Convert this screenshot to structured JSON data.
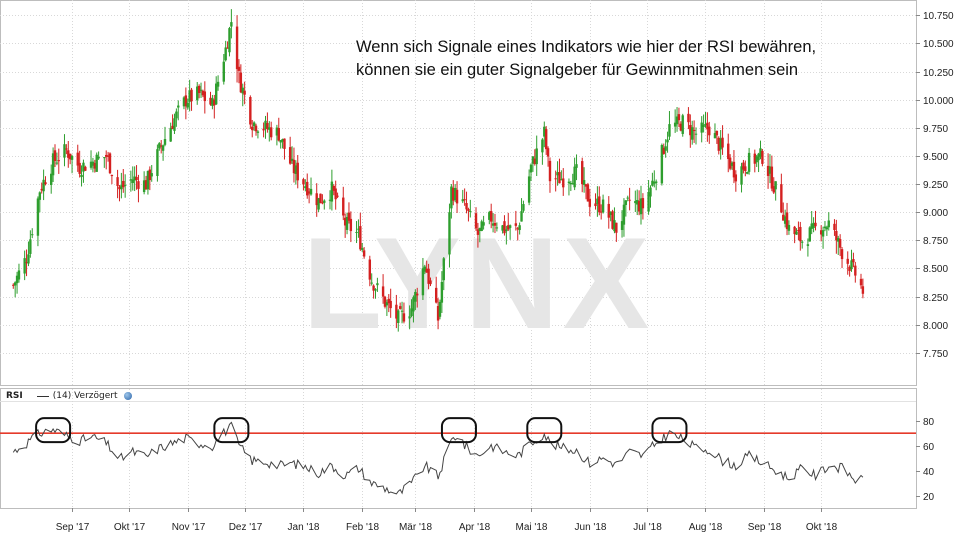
{
  "annotation": {
    "line1": "Wenn sich Signale eines Indikators wie hier der RSI bewähren,",
    "line2": "können sie ein guter Signalgeber für Gewinnmitnahmen sein"
  },
  "watermark": "LYNX",
  "rsi_legend": {
    "title": "RSI",
    "params": "(14) Verzögert",
    "icon": "globe-icon"
  },
  "colors": {
    "up_candle": "#2e9e2e",
    "down_candle": "#d42020",
    "rsi_line": "#444444",
    "threshold_line": "#e53a2a",
    "grid": "#d8d8d8",
    "watermark": "#e6e6e6"
  },
  "chart_data": [
    {
      "type": "candlestick",
      "title": "",
      "xlabel": "",
      "ylabel": "",
      "ylim": [
        7.5,
        10.85
      ],
      "yticks": [
        "7.750",
        "8.000",
        "8.250",
        "8.500",
        "8.750",
        "9.000",
        "9.250",
        "9.500",
        "9.750",
        "10.000",
        "10.250",
        "10.500",
        "10.750"
      ],
      "x_ticks": [
        "Sep '17",
        "Okt '17",
        "Nov '17",
        "Dez '17",
        "Jan '18",
        "Feb '18",
        "Mär '18",
        "Apr '18",
        "Mai '18",
        "Jun '18",
        "Jul '18",
        "Aug '18",
        "Sep '18",
        "Okt '18"
      ],
      "grid": true,
      "close_path": [
        [
          "2017-08-01",
          8.35
        ],
        [
          "2017-08-08",
          8.6
        ],
        [
          "2017-08-15",
          9.2
        ],
        [
          "2017-08-22",
          9.45
        ],
        [
          "2017-08-29",
          9.55
        ],
        [
          "2017-09-05",
          9.4
        ],
        [
          "2017-09-12",
          9.45
        ],
        [
          "2017-09-19",
          9.5
        ],
        [
          "2017-09-26",
          9.2
        ],
        [
          "2017-10-03",
          9.3
        ],
        [
          "2017-10-10",
          9.25
        ],
        [
          "2017-10-17",
          9.55
        ],
        [
          "2017-10-24",
          9.8
        ],
        [
          "2017-10-31",
          10.0
        ],
        [
          "2017-11-07",
          10.05
        ],
        [
          "2017-11-14",
          9.95
        ],
        [
          "2017-11-21",
          10.45
        ],
        [
          "2017-11-24",
          10.7
        ],
        [
          "2017-11-28",
          10.2
        ],
        [
          "2017-12-05",
          9.8
        ],
        [
          "2017-12-12",
          9.75
        ],
        [
          "2017-12-19",
          9.7
        ],
        [
          "2017-12-26",
          9.4
        ],
        [
          "2018-01-02",
          9.25
        ],
        [
          "2018-01-09",
          9.1
        ],
        [
          "2018-01-16",
          9.2
        ],
        [
          "2018-01-23",
          8.9
        ],
        [
          "2018-01-30",
          8.8
        ],
        [
          "2018-02-06",
          8.4
        ],
        [
          "2018-02-13",
          8.2
        ],
        [
          "2018-02-20",
          8.05
        ],
        [
          "2018-02-27",
          8.15
        ],
        [
          "2018-03-06",
          8.55
        ],
        [
          "2018-03-13",
          8.05
        ],
        [
          "2018-03-20",
          9.2
        ],
        [
          "2018-03-27",
          9.05
        ],
        [
          "2018-04-03",
          8.8
        ],
        [
          "2018-04-10",
          8.95
        ],
        [
          "2018-04-17",
          8.85
        ],
        [
          "2018-04-24",
          8.85
        ],
        [
          "2018-05-01",
          9.4
        ],
        [
          "2018-05-08",
          9.7
        ],
        [
          "2018-05-11",
          9.3
        ],
        [
          "2018-05-18",
          9.3
        ],
        [
          "2018-05-25",
          9.35
        ],
        [
          "2018-06-01",
          9.1
        ],
        [
          "2018-06-08",
          9.05
        ],
        [
          "2018-06-15",
          8.85
        ],
        [
          "2018-06-22",
          9.1
        ],
        [
          "2018-06-29",
          9.05
        ],
        [
          "2018-07-06",
          9.35
        ],
        [
          "2018-07-13",
          9.75
        ],
        [
          "2018-07-20",
          9.8
        ],
        [
          "2018-07-27",
          9.7
        ],
        [
          "2018-08-03",
          9.75
        ],
        [
          "2018-08-10",
          9.55
        ],
        [
          "2018-08-17",
          9.35
        ],
        [
          "2018-08-24",
          9.45
        ],
        [
          "2018-08-31",
          9.5
        ],
        [
          "2018-09-07",
          9.2
        ],
        [
          "2018-09-14",
          8.85
        ],
        [
          "2018-09-21",
          8.75
        ],
        [
          "2018-09-28",
          8.85
        ],
        [
          "2018-10-05",
          8.9
        ],
        [
          "2018-10-12",
          8.65
        ],
        [
          "2018-10-19",
          8.45
        ],
        [
          "2018-10-23",
          8.3
        ]
      ]
    },
    {
      "type": "line",
      "series": [
        {
          "name": "RSI",
          "values": []
        }
      ],
      "ylim": [
        10,
        95
      ],
      "yticks": [
        20,
        40,
        60,
        80
      ],
      "threshold": 70,
      "grid": true,
      "rsi_path": [
        [
          "2017-08-01",
          55
        ],
        [
          "2017-08-08",
          62
        ],
        [
          "2017-08-15",
          70
        ],
        [
          "2017-08-22",
          73
        ],
        [
          "2017-08-29",
          68
        ],
        [
          "2017-09-05",
          64
        ],
        [
          "2017-09-12",
          67
        ],
        [
          "2017-09-19",
          62
        ],
        [
          "2017-09-26",
          49
        ],
        [
          "2017-10-03",
          55
        ],
        [
          "2017-10-10",
          51
        ],
        [
          "2017-10-17",
          58
        ],
        [
          "2017-10-24",
          62
        ],
        [
          "2017-10-31",
          66
        ],
        [
          "2017-11-07",
          62
        ],
        [
          "2017-11-14",
          60
        ],
        [
          "2017-11-21",
          72
        ],
        [
          "2017-11-24",
          75
        ],
        [
          "2017-11-28",
          60
        ],
        [
          "2017-12-05",
          48
        ],
        [
          "2017-12-12",
          47
        ],
        [
          "2017-12-19",
          44
        ],
        [
          "2017-12-26",
          46
        ],
        [
          "2018-01-02",
          43
        ],
        [
          "2018-01-09",
          38
        ],
        [
          "2018-01-16",
          44
        ],
        [
          "2018-01-23",
          36
        ],
        [
          "2018-01-30",
          42
        ],
        [
          "2018-02-06",
          30
        ],
        [
          "2018-02-13",
          26
        ],
        [
          "2018-02-20",
          21
        ],
        [
          "2018-02-27",
          30
        ],
        [
          "2018-03-06",
          44
        ],
        [
          "2018-03-13",
          35
        ],
        [
          "2018-03-20",
          64
        ],
        [
          "2018-03-24",
          70
        ],
        [
          "2018-03-27",
          60
        ],
        [
          "2018-04-03",
          52
        ],
        [
          "2018-04-10",
          60
        ],
        [
          "2018-04-17",
          55
        ],
        [
          "2018-04-24",
          52
        ],
        [
          "2018-05-01",
          62
        ],
        [
          "2018-05-08",
          70
        ],
        [
          "2018-05-11",
          62
        ],
        [
          "2018-05-18",
          58
        ],
        [
          "2018-05-25",
          56
        ],
        [
          "2018-06-01",
          46
        ],
        [
          "2018-06-08",
          50
        ],
        [
          "2018-06-15",
          45
        ],
        [
          "2018-06-22",
          55
        ],
        [
          "2018-06-29",
          52
        ],
        [
          "2018-07-06",
          62
        ],
        [
          "2018-07-13",
          70
        ],
        [
          "2018-07-20",
          65
        ],
        [
          "2018-07-27",
          58
        ],
        [
          "2018-08-03",
          57
        ],
        [
          "2018-08-10",
          48
        ],
        [
          "2018-08-17",
          44
        ],
        [
          "2018-08-24",
          52
        ],
        [
          "2018-08-31",
          46
        ],
        [
          "2018-09-07",
          40
        ],
        [
          "2018-09-14",
          34
        ],
        [
          "2018-09-21",
          42
        ],
        [
          "2018-09-28",
          36
        ],
        [
          "2018-10-05",
          44
        ],
        [
          "2018-10-12",
          42
        ],
        [
          "2018-10-19",
          33
        ],
        [
          "2018-10-23",
          32
        ]
      ],
      "signal_highlights": [
        "2017-08-22",
        "2017-11-24",
        "2018-03-24",
        "2018-05-08",
        "2018-07-13"
      ]
    }
  ]
}
